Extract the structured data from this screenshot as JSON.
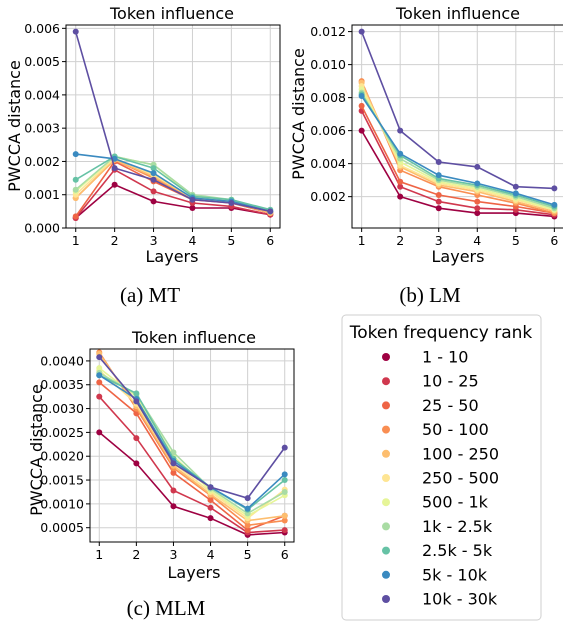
{
  "figure": {
    "legend_title": "Token frequency rank",
    "series_names": [
      "1 - 10",
      "10 - 25",
      "25 - 50",
      "50 - 100",
      "100 - 250",
      "250 - 500",
      "500 - 1k",
      "1k - 2.5k",
      "2.5k - 5k",
      "5k - 10k",
      "10k - 30k"
    ],
    "series_colors": [
      "#9e0142",
      "#d0384e",
      "#ee6445",
      "#f98e52",
      "#fdbe6f",
      "#fee593",
      "#e6f598",
      "#a9dca4",
      "#66c2a5",
      "#3a8ac0",
      "#5e4fa2"
    ]
  },
  "chart_data": [
    {
      "type": "line",
      "title": "Token influence",
      "caption": "(a) MT",
      "xlabel": "Layers",
      "ylabel": "PWCCA distance",
      "x": [
        1,
        2,
        3,
        4,
        5,
        6
      ],
      "xlim": [
        0.75,
        6.25
      ],
      "ylim": [
        0,
        0.0061
      ],
      "yticks": [
        0.0,
        0.001,
        0.002,
        0.003,
        0.004,
        0.005,
        0.006
      ],
      "ytick_labels": [
        "0.000",
        "0.001",
        "0.002",
        "0.003",
        "0.004",
        "0.005",
        "0.006"
      ],
      "grid": true,
      "series": [
        {
          "values": [
            0.0003,
            0.0013,
            0.0008,
            0.0006,
            0.0006,
            0.0004
          ]
        },
        {
          "values": [
            0.0003,
            0.00175,
            0.0011,
            0.00075,
            0.00065,
            0.0004
          ]
        },
        {
          "values": [
            0.00035,
            0.002,
            0.0014,
            0.00085,
            0.00075,
            0.00045
          ]
        },
        {
          "values": [
            0.0009,
            0.00205,
            0.0015,
            0.0009,
            0.00075,
            0.00045
          ]
        },
        {
          "values": [
            0.0009,
            0.00205,
            0.00155,
            0.0009,
            0.0008,
            0.00045
          ]
        },
        {
          "values": [
            0.001,
            0.0021,
            0.0016,
            0.0009,
            0.0008,
            0.0005
          ]
        },
        {
          "values": [
            0.0011,
            0.00215,
            0.0019,
            0.00095,
            0.00085,
            0.0005
          ]
        },
        {
          "values": [
            0.00115,
            0.00215,
            0.0019,
            0.001,
            0.00085,
            0.0005
          ]
        },
        {
          "values": [
            0.00145,
            0.00215,
            0.0018,
            0.00095,
            0.00085,
            0.00055
          ]
        },
        {
          "values": [
            0.00222,
            0.00208,
            0.00165,
            0.0009,
            0.0008,
            0.0005
          ]
        },
        {
          "values": [
            0.0059,
            0.0018,
            0.00145,
            0.00085,
            0.00075,
            0.0005
          ]
        }
      ]
    },
    {
      "type": "line",
      "title": "Token influence",
      "caption": "(b) LM",
      "xlabel": "Layers",
      "ylabel": "PWCCA distance",
      "x": [
        1,
        2,
        3,
        4,
        5,
        6
      ],
      "xlim": [
        0.75,
        6.25
      ],
      "ylim": [
        0.0001,
        0.0124
      ],
      "yticks": [
        0.002,
        0.004,
        0.006,
        0.008,
        0.01,
        0.012
      ],
      "ytick_labels": [
        "0.002",
        "0.004",
        "0.006",
        "0.008",
        "0.010",
        "0.012"
      ],
      "grid": true,
      "series": [
        {
          "values": [
            0.006,
            0.002,
            0.0013,
            0.001,
            0.001,
            0.0008
          ]
        },
        {
          "values": [
            0.0072,
            0.0026,
            0.0017,
            0.0013,
            0.0012,
            0.0009
          ]
        },
        {
          "values": [
            0.0075,
            0.0029,
            0.0021,
            0.0017,
            0.0014,
            0.001
          ]
        },
        {
          "values": [
            0.009,
            0.0036,
            0.0026,
            0.0021,
            0.0016,
            0.001
          ]
        },
        {
          "values": [
            0.0089,
            0.0038,
            0.0027,
            0.0023,
            0.0017,
            0.0011
          ]
        },
        {
          "values": [
            0.0087,
            0.0039,
            0.0028,
            0.0024,
            0.0018,
            0.0012
          ]
        },
        {
          "values": [
            0.0085,
            0.0041,
            0.0029,
            0.0025,
            0.0019,
            0.0012
          ]
        },
        {
          "values": [
            0.0083,
            0.0043,
            0.003,
            0.0026,
            0.002,
            0.0013
          ]
        },
        {
          "values": [
            0.0082,
            0.0045,
            0.0031,
            0.0027,
            0.0021,
            0.0014
          ]
        },
        {
          "values": [
            0.0081,
            0.0046,
            0.0033,
            0.0028,
            0.0022,
            0.0015
          ]
        },
        {
          "values": [
            0.012,
            0.006,
            0.0041,
            0.0038,
            0.0026,
            0.0025
          ]
        }
      ]
    },
    {
      "type": "line",
      "title": "Token influence",
      "caption": "(c) MLM",
      "xlabel": "Layers",
      "ylabel": "PWCCA distance",
      "x": [
        1,
        2,
        3,
        4,
        5,
        6
      ],
      "xlim": [
        0.75,
        6.25
      ],
      "ylim": [
        0.0002,
        0.00425
      ],
      "yticks": [
        0.0005,
        0.001,
        0.0015,
        0.002,
        0.0025,
        0.003,
        0.0035,
        0.004
      ],
      "ytick_labels": [
        "0.0005",
        "0.0010",
        "0.0015",
        "0.0020",
        "0.0025",
        "0.0030",
        "0.0035",
        "0.0040"
      ],
      "grid": true,
      "series": [
        {
          "values": [
            0.0025,
            0.00185,
            0.00095,
            0.0007,
            0.00035,
            0.0004
          ]
        },
        {
          "values": [
            0.00325,
            0.00238,
            0.00128,
            0.00092,
            0.0004,
            0.00045
          ]
        },
        {
          "values": [
            0.00355,
            0.0029,
            0.00165,
            0.00108,
            0.00045,
            0.00075
          ]
        },
        {
          "values": [
            0.00418,
            0.003,
            0.00175,
            0.00118,
            0.00055,
            0.00065
          ]
        },
        {
          "values": [
            0.00415,
            0.00305,
            0.0018,
            0.0012,
            0.00065,
            0.00075
          ]
        },
        {
          "values": [
            0.0038,
            0.0031,
            0.00185,
            0.00125,
            0.0007,
            0.0013
          ]
        },
        {
          "values": [
            0.00385,
            0.00325,
            0.002,
            0.00128,
            0.00075,
            0.00118
          ]
        },
        {
          "values": [
            0.00375,
            0.0033,
            0.00208,
            0.00132,
            0.0008,
            0.00125
          ]
        },
        {
          "values": [
            0.0037,
            0.00332,
            0.00195,
            0.00135,
            0.00088,
            0.0015
          ]
        },
        {
          "values": [
            0.0037,
            0.0032,
            0.0019,
            0.00135,
            0.0009,
            0.00162
          ]
        },
        {
          "values": [
            0.00408,
            0.00315,
            0.00185,
            0.00135,
            0.00112,
            0.00218
          ]
        }
      ]
    }
  ]
}
